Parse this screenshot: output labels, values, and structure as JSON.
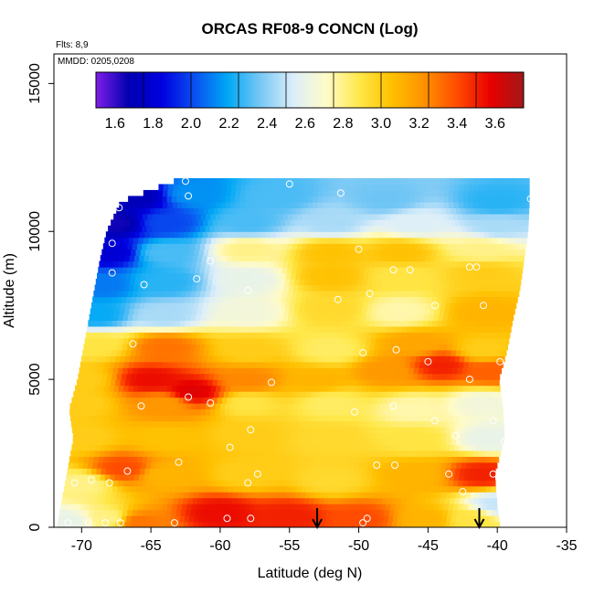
{
  "chart_data": {
    "type": "heatmap",
    "title": "ORCAS RF08-9 CONCN (Log)",
    "annotations": [
      "Flts: 8,9",
      "MMDD: 0205,0208"
    ],
    "xlabel": "Latitude (deg N)",
    "ylabel": "Altitude (m)",
    "xlim": [
      -72,
      -35
    ],
    "ylim": [
      0,
      16000
    ],
    "xticks": [
      -70,
      -65,
      -60,
      -55,
      -50,
      -45,
      -40,
      -35
    ],
    "yticks": [
      0,
      5000,
      10000,
      15000
    ],
    "colorbar": {
      "range": [
        1.5,
        3.75
      ],
      "ticks": [
        1.6,
        1.8,
        2.0,
        2.2,
        2.4,
        2.6,
        2.8,
        3.0,
        3.2,
        3.4,
        3.6
      ],
      "colors": [
        "#7f1ee8",
        "#0000b0",
        "#0000e0",
        "#0a50f0",
        "#00a8f5",
        "#78c8f5",
        "#dceefa",
        "#fffbc8",
        "#ffe84a",
        "#ffc000",
        "#ff9000",
        "#ff4a00",
        "#e80000",
        "#a01818"
      ]
    },
    "grid": false,
    "outer_lat_edge": [
      [
        0,
        -71.8
      ],
      [
        1000,
        -71.4
      ],
      [
        2000,
        -71.0
      ],
      [
        3000,
        -70.6
      ],
      [
        4000,
        -70.9
      ],
      [
        5000,
        -70.3
      ],
      [
        6000,
        -69.9
      ],
      [
        7000,
        -69.5
      ],
      [
        8000,
        -69.1
      ],
      [
        9000,
        -68.7
      ],
      [
        10000,
        -68.2
      ],
      [
        11000,
        -67.2
      ],
      [
        11800,
        -62.8
      ]
    ],
    "inner_lat_edge": [
      [
        0,
        -39.8
      ],
      [
        600,
        -40.0
      ],
      [
        1800,
        -40.2
      ],
      [
        3000,
        -39.5
      ],
      [
        4000,
        -39.6
      ],
      [
        5000,
        -39.9
      ],
      [
        6000,
        -39.3
      ],
      [
        7000,
        -38.9
      ],
      [
        8000,
        -38.4
      ],
      [
        9000,
        -38.1
      ],
      [
        10000,
        -37.8
      ],
      [
        11000,
        -37.7
      ]
    ],
    "anchors": [
      {
        "lat": -71,
        "alt": 200,
        "v": 2.6
      },
      {
        "lat": -68,
        "alt": 300,
        "v": 2.8
      },
      {
        "lat": -66,
        "alt": 200,
        "v": 3.3
      },
      {
        "lat": -60,
        "alt": 500,
        "v": 3.55
      },
      {
        "lat": -55,
        "alt": 400,
        "v": 3.5
      },
      {
        "lat": -50,
        "alt": 300,
        "v": 3.4
      },
      {
        "lat": -45,
        "alt": 300,
        "v": 3.1
      },
      {
        "lat": -42,
        "alt": 300,
        "v": 2.9
      },
      {
        "lat": -40,
        "alt": 800,
        "v": 2.5
      },
      {
        "lat": -70,
        "alt": 1500,
        "v": 2.8
      },
      {
        "lat": -67,
        "alt": 2000,
        "v": 3.4
      },
      {
        "lat": -64,
        "alt": 1800,
        "v": 3.1
      },
      {
        "lat": -58,
        "alt": 1800,
        "v": 3.0
      },
      {
        "lat": -52,
        "alt": 1600,
        "v": 2.95
      },
      {
        "lat": -46,
        "alt": 1800,
        "v": 3.1
      },
      {
        "lat": -41,
        "alt": 1800,
        "v": 3.5
      },
      {
        "lat": -70,
        "alt": 3000,
        "v": 3.0
      },
      {
        "lat": -64,
        "alt": 3000,
        "v": 3.05
      },
      {
        "lat": -58,
        "alt": 3200,
        "v": 3.0
      },
      {
        "lat": -52,
        "alt": 3000,
        "v": 2.95
      },
      {
        "lat": -46,
        "alt": 3000,
        "v": 2.9
      },
      {
        "lat": -40.5,
        "alt": 3000,
        "v": 2.6
      },
      {
        "lat": -70,
        "alt": 4200,
        "v": 3.0
      },
      {
        "lat": -64,
        "alt": 4200,
        "v": 3.2
      },
      {
        "lat": -58,
        "alt": 4200,
        "v": 2.9
      },
      {
        "lat": -52,
        "alt": 4200,
        "v": 2.85
      },
      {
        "lat": -46,
        "alt": 4000,
        "v": 2.75
      },
      {
        "lat": -41,
        "alt": 4200,
        "v": 2.65
      },
      {
        "lat": -70,
        "alt": 5000,
        "v": 3.0
      },
      {
        "lat": -65,
        "alt": 5000,
        "v": 3.55
      },
      {
        "lat": -62,
        "alt": 4600,
        "v": 3.6
      },
      {
        "lat": -58,
        "alt": 5000,
        "v": 3.25
      },
      {
        "lat": -53,
        "alt": 5000,
        "v": 3.1
      },
      {
        "lat": -48,
        "alt": 5300,
        "v": 3.2
      },
      {
        "lat": -44,
        "alt": 5500,
        "v": 3.5
      },
      {
        "lat": -40.5,
        "alt": 5300,
        "v": 3.35
      },
      {
        "lat": -69,
        "alt": 6200,
        "v": 2.9
      },
      {
        "lat": -64,
        "alt": 6100,
        "v": 3.3
      },
      {
        "lat": -58,
        "alt": 6000,
        "v": 3.0
      },
      {
        "lat": -52,
        "alt": 6000,
        "v": 2.85
      },
      {
        "lat": -46,
        "alt": 6200,
        "v": 3.15
      },
      {
        "lat": -41,
        "alt": 6000,
        "v": 3.0
      },
      {
        "lat": -69,
        "alt": 7200,
        "v": 2.2
      },
      {
        "lat": -64,
        "alt": 7200,
        "v": 2.45
      },
      {
        "lat": -58,
        "alt": 7300,
        "v": 2.65
      },
      {
        "lat": -52,
        "alt": 7400,
        "v": 2.95
      },
      {
        "lat": -47,
        "alt": 7300,
        "v": 2.75
      },
      {
        "lat": -41,
        "alt": 7300,
        "v": 3.1
      },
      {
        "lat": -68.5,
        "alt": 8200,
        "v": 2.1
      },
      {
        "lat": -64,
        "alt": 8300,
        "v": 2.25
      },
      {
        "lat": -58,
        "alt": 8400,
        "v": 2.6
      },
      {
        "lat": -52,
        "alt": 8500,
        "v": 3.05
      },
      {
        "lat": -47,
        "alt": 8500,
        "v": 2.9
      },
      {
        "lat": -41,
        "alt": 8600,
        "v": 3.0
      },
      {
        "lat": -68,
        "alt": 9300,
        "v": 1.8
      },
      {
        "lat": -64,
        "alt": 9300,
        "v": 2.3
      },
      {
        "lat": -58,
        "alt": 9400,
        "v": 2.8
      },
      {
        "lat": -52,
        "alt": 9300,
        "v": 3.05
      },
      {
        "lat": -47,
        "alt": 9300,
        "v": 3.05
      },
      {
        "lat": -41,
        "alt": 9400,
        "v": 2.8
      },
      {
        "lat": -67.5,
        "alt": 10300,
        "v": 1.65
      },
      {
        "lat": -64,
        "alt": 10300,
        "v": 2.0
      },
      {
        "lat": -58,
        "alt": 10300,
        "v": 2.3
      },
      {
        "lat": -52,
        "alt": 10300,
        "v": 2.45
      },
      {
        "lat": -46,
        "alt": 10300,
        "v": 2.55
      },
      {
        "lat": -40,
        "alt": 10200,
        "v": 2.45
      },
      {
        "lat": -66,
        "alt": 11200,
        "v": 1.7
      },
      {
        "lat": -62,
        "alt": 11300,
        "v": 2.15
      },
      {
        "lat": -56,
        "alt": 11200,
        "v": 2.3
      },
      {
        "lat": -48,
        "alt": 11100,
        "v": 2.35
      },
      {
        "lat": -40,
        "alt": 11000,
        "v": 2.25
      }
    ],
    "flight_points": [
      [
        -71,
        150
      ],
      [
        -69.5,
        150
      ],
      [
        -68.3,
        150
      ],
      [
        -67.2,
        150
      ],
      [
        -63.3,
        150
      ],
      [
        -59.5,
        300
      ],
      [
        -57.8,
        300
      ],
      [
        -49.7,
        150
      ],
      [
        -49.4,
        300
      ],
      [
        -70.5,
        1500
      ],
      [
        -69.3,
        1600
      ],
      [
        -68,
        1500
      ],
      [
        -66.7,
        1900
      ],
      [
        -63,
        2200
      ],
      [
        -58,
        1500
      ],
      [
        -57.3,
        1800
      ],
      [
        -48.7,
        2100
      ],
      [
        -47.4,
        2100
      ],
      [
        -43.5,
        1800
      ],
      [
        -42.5,
        1200
      ],
      [
        -40.3,
        1800
      ],
      [
        -71.5,
        4100
      ],
      [
        -65.7,
        4100
      ],
      [
        -62.3,
        4400
      ],
      [
        -60.7,
        4200
      ],
      [
        -59.3,
        2700
      ],
      [
        -57.8,
        3300
      ],
      [
        -50.3,
        3900
      ],
      [
        -47.5,
        4100
      ],
      [
        -44.5,
        3600
      ],
      [
        -43,
        3100
      ],
      [
        -40.3,
        3600
      ],
      [
        -66.3,
        6200
      ],
      [
        -56.3,
        4900
      ],
      [
        -49.7,
        5900
      ],
      [
        -47.3,
        6000
      ],
      [
        -45,
        5600
      ],
      [
        -42,
        5000
      ],
      [
        -39.8,
        5600
      ],
      [
        -39.5,
        2900
      ],
      [
        -69.7,
        7100
      ],
      [
        -67.8,
        8600
      ],
      [
        -65.5,
        8200
      ],
      [
        -61.7,
        8400
      ],
      [
        -60.7,
        9000
      ],
      [
        -58,
        8000
      ],
      [
        -51.5,
        7700
      ],
      [
        -49.2,
        7900
      ],
      [
        -47.5,
        8700
      ],
      [
        -46.3,
        8700
      ],
      [
        -44.5,
        7500
      ],
      [
        -42,
        8800
      ],
      [
        -41.5,
        8800
      ],
      [
        -41,
        7500
      ],
      [
        -50,
        9400
      ],
      [
        -67.8,
        9600
      ],
      [
        -67.3,
        10800
      ],
      [
        -62.5,
        11700
      ],
      [
        -62.3,
        11200
      ],
      [
        -55,
        11600
      ],
      [
        -51.3,
        11300
      ],
      [
        -37.6,
        11100
      ]
    ],
    "arrow_markers": [
      -53,
      -41.3
    ]
  }
}
